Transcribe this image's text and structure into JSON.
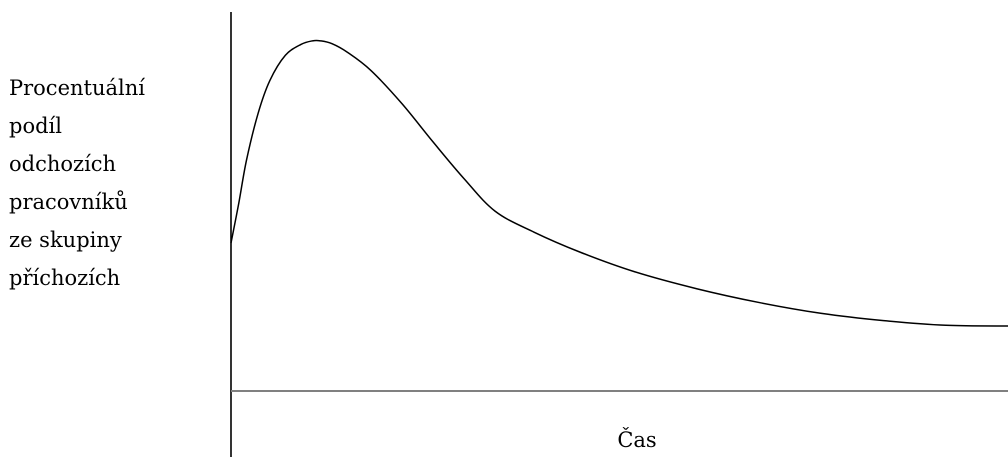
{
  "chart_data": {
    "type": "line",
    "title": "",
    "ylabel_lines": [
      "Procentuální",
      "podíl",
      "odchozích",
      "pracovníků",
      "ze skupiny",
      "příchozích"
    ],
    "xlabel": "Čas",
    "axis_color": "#000000",
    "baseline_color": "#808080",
    "line_color": "#000000",
    "xlim": [
      0,
      10
    ],
    "ylim": [
      0,
      10
    ],
    "grid": false,
    "series": [
      {
        "x": [
          0,
          0.1,
          0.2,
          0.35,
          0.5,
          0.7,
          0.9,
          1.05,
          1.15,
          1.3,
          1.5,
          1.8,
          2.2,
          2.6,
          3.0,
          3.4,
          3.9,
          4.5,
          5.2,
          6.0,
          6.8,
          7.6,
          8.4,
          9.2,
          10.0
        ],
        "y": [
          4.1,
          5.2,
          6.4,
          7.7,
          8.6,
          9.3,
          9.6,
          9.7,
          9.7,
          9.62,
          9.38,
          8.88,
          7.96,
          6.9,
          5.88,
          4.98,
          4.4,
          3.84,
          3.3,
          2.83,
          2.45,
          2.15,
          1.95,
          1.82,
          1.8
        ]
      }
    ]
  }
}
